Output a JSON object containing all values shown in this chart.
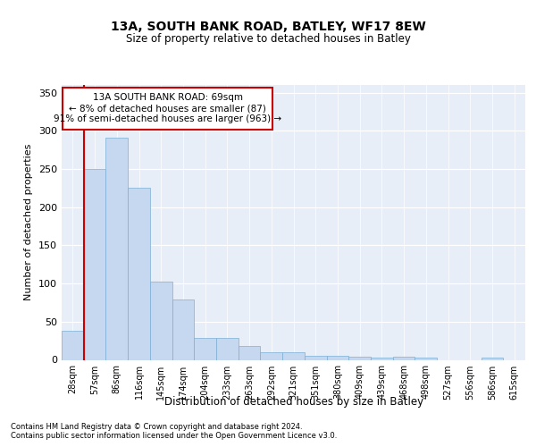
{
  "title1": "13A, SOUTH BANK ROAD, BATLEY, WF17 8EW",
  "title2": "Size of property relative to detached houses in Batley",
  "xlabel": "Distribution of detached houses by size in Batley",
  "ylabel": "Number of detached properties",
  "categories": [
    "28sqm",
    "57sqm",
    "86sqm",
    "116sqm",
    "145sqm",
    "174sqm",
    "204sqm",
    "233sqm",
    "263sqm",
    "292sqm",
    "321sqm",
    "351sqm",
    "380sqm",
    "409sqm",
    "439sqm",
    "468sqm",
    "498sqm",
    "527sqm",
    "556sqm",
    "586sqm",
    "615sqm"
  ],
  "values": [
    38,
    250,
    291,
    225,
    103,
    79,
    29,
    29,
    18,
    10,
    10,
    5,
    5,
    4,
    3,
    4,
    3,
    0,
    0,
    3,
    0
  ],
  "bar_color": "#c5d8f0",
  "bar_edgecolor": "#7bafd4",
  "vline_x": 1.5,
  "vline_color": "#cc0000",
  "annotation_title": "13A SOUTH BANK ROAD: 69sqm",
  "annotation_line1": "← 8% of detached houses are smaller (87)",
  "annotation_line2": "91% of semi-detached houses are larger (963) →",
  "annotation_box_color": "#ffffff",
  "annotation_border_color": "#cc0000",
  "ylim": [
    0,
    360
  ],
  "yticks": [
    0,
    50,
    100,
    150,
    200,
    250,
    300,
    350
  ],
  "footnote1": "Contains HM Land Registry data © Crown copyright and database right 2024.",
  "footnote2": "Contains public sector information licensed under the Open Government Licence v3.0.",
  "background_color": "#e8eef8",
  "grid_color": "#ffffff"
}
